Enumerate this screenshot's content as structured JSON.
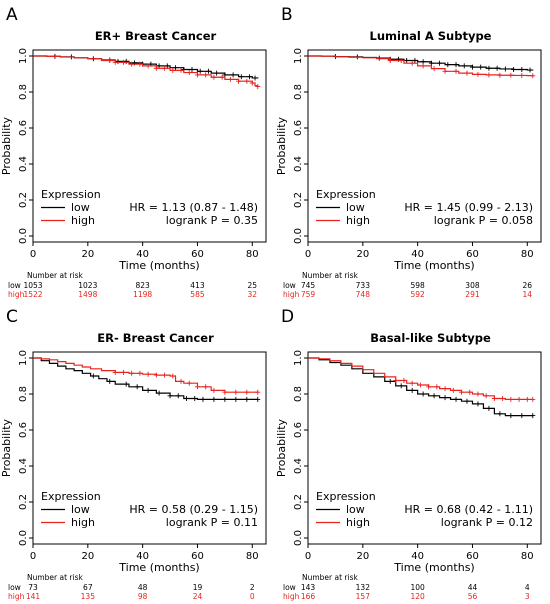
{
  "chart_data": [
    {
      "panel_letter": "A",
      "type": "line",
      "title": "ER+ Breast Cancer",
      "xlabel": "Time (months)",
      "ylabel": "Probability",
      "xlim": [
        0,
        85
      ],
      "ylim": [
        0,
        1
      ],
      "x_ticks": [
        "0",
        "20",
        "40",
        "60",
        "80"
      ],
      "y_ticks": [
        "0.0",
        "0.2",
        "0.4",
        "0.6",
        "0.8",
        "1.0"
      ],
      "grid": false,
      "legend": {
        "title": "Expression",
        "placement": "bottom-left",
        "entries": [
          "low",
          "high"
        ]
      },
      "hr": "HR = 1.13 (0.87 - 1.48)",
      "logrank": "logrank P = 0.35",
      "risk_table": {
        "heading": "Number at risk",
        "times": [
          0,
          20,
          40,
          60,
          80
        ],
        "rows": [
          {
            "label": "low",
            "values": [
              "1053",
              "1023",
              "823",
              "413",
              "25"
            ]
          },
          {
            "label": "high",
            "values": [
              "1522",
              "1498",
              "1198",
              "585",
              "32"
            ]
          }
        ]
      },
      "series": [
        {
          "name": "low",
          "color": "#000000",
          "x": [
            0,
            5,
            10,
            15,
            20,
            25,
            30,
            35,
            40,
            45,
            50,
            55,
            60,
            65,
            70,
            75,
            80,
            82
          ],
          "y": [
            1.0,
            0.998,
            0.995,
            0.99,
            0.985,
            0.978,
            0.97,
            0.962,
            0.955,
            0.945,
            0.935,
            0.925,
            0.915,
            0.905,
            0.895,
            0.885,
            0.878,
            0.875
          ],
          "censor_x": [
            8,
            14,
            22,
            28,
            31,
            34,
            37,
            40,
            43,
            46,
            49,
            52,
            55,
            58,
            61,
            64,
            67,
            70,
            73,
            76,
            79,
            81
          ]
        },
        {
          "name": "high",
          "color": "#e8231c",
          "x": [
            0,
            5,
            10,
            15,
            20,
            25,
            30,
            35,
            40,
            45,
            50,
            55,
            60,
            65,
            70,
            75,
            80,
            81,
            82
          ],
          "y": [
            1.0,
            0.998,
            0.994,
            0.99,
            0.985,
            0.975,
            0.965,
            0.955,
            0.945,
            0.932,
            0.92,
            0.908,
            0.895,
            0.882,
            0.87,
            0.86,
            0.85,
            0.835,
            0.83
          ],
          "censor_x": [
            28,
            30,
            33,
            36,
            39,
            42,
            45,
            48,
            51,
            54,
            57,
            60,
            63,
            66,
            69,
            72,
            75,
            78,
            80,
            82
          ]
        }
      ]
    },
    {
      "panel_letter": "B",
      "type": "line",
      "title": "Luminal A Subtype",
      "xlabel": "Time (months)",
      "ylabel": "Probability",
      "xlim": [
        0,
        85
      ],
      "ylim": [
        0,
        1
      ],
      "x_ticks": [
        "0",
        "20",
        "40",
        "60",
        "80"
      ],
      "y_ticks": [
        "0.0",
        "0.2",
        "0.4",
        "0.6",
        "0.8",
        "1.0"
      ],
      "grid": false,
      "legend": {
        "title": "Expression",
        "placement": "bottom-left",
        "entries": [
          "low",
          "high"
        ]
      },
      "hr": "HR = 1.45 (0.99 - 2.13)",
      "logrank": "logrank P = 0.058",
      "risk_table": {
        "heading": "Number at risk",
        "times": [
          0,
          20,
          40,
          60,
          80
        ],
        "rows": [
          {
            "label": "low",
            "values": [
              "745",
              "733",
              "598",
              "308",
              "26"
            ]
          },
          {
            "label": "high",
            "values": [
              "759",
              "748",
              "592",
              "291",
              "14"
            ]
          }
        ]
      },
      "series": [
        {
          "name": "low",
          "color": "#000000",
          "x": [
            0,
            5,
            10,
            15,
            20,
            25,
            30,
            35,
            40,
            45,
            50,
            55,
            60,
            65,
            70,
            75,
            80,
            82
          ],
          "y": [
            1.0,
            0.999,
            0.997,
            0.995,
            0.992,
            0.988,
            0.982,
            0.975,
            0.968,
            0.96,
            0.952,
            0.945,
            0.938,
            0.932,
            0.928,
            0.925,
            0.922,
            0.92
          ],
          "censor_x": [
            10,
            18,
            26,
            30,
            33,
            36,
            39,
            42,
            45,
            48,
            51,
            54,
            57,
            60,
            63,
            66,
            69,
            72,
            75,
            78,
            81
          ]
        },
        {
          "name": "high",
          "color": "#e8231c",
          "x": [
            0,
            5,
            10,
            15,
            20,
            25,
            30,
            35,
            40,
            45,
            50,
            55,
            60,
            65,
            70,
            75,
            80,
            82
          ],
          "y": [
            1.0,
            0.999,
            0.996,
            0.993,
            0.99,
            0.985,
            0.975,
            0.96,
            0.945,
            0.93,
            0.915,
            0.905,
            0.898,
            0.895,
            0.893,
            0.892,
            0.891,
            0.89
          ],
          "censor_x": [
            30,
            34,
            38,
            42,
            46,
            50,
            54,
            58,
            62,
            66,
            70,
            74,
            78,
            82
          ]
        }
      ]
    },
    {
      "panel_letter": "C",
      "type": "line",
      "title": "ER- Breast Cancer",
      "xlabel": "Time (months)",
      "ylabel": "Probability",
      "xlim": [
        0,
        85
      ],
      "ylim": [
        0,
        1
      ],
      "x_ticks": [
        "0",
        "20",
        "40",
        "60",
        "80"
      ],
      "y_ticks": [
        "0.0",
        "0.2",
        "0.4",
        "0.6",
        "0.8",
        "1.0"
      ],
      "grid": false,
      "legend": {
        "title": "Expression",
        "placement": "bottom-left",
        "entries": [
          "low",
          "high"
        ]
      },
      "hr": "HR = 0.58 (0.29 - 1.15)",
      "logrank": "logrank P = 0.11",
      "risk_table": {
        "heading": "Number at risk",
        "times": [
          0,
          20,
          40,
          60,
          80
        ],
        "rows": [
          {
            "label": "low",
            "values": [
              "73",
              "67",
              "48",
              "19",
              "2"
            ]
          },
          {
            "label": "high",
            "values": [
              "141",
              "135",
              "98",
              "24",
              "0"
            ]
          }
        ]
      },
      "series": [
        {
          "name": "low",
          "color": "#000000",
          "x": [
            0,
            3,
            6,
            9,
            12,
            15,
            18,
            21,
            24,
            27,
            30,
            35,
            40,
            45,
            50,
            55,
            60,
            65,
            70,
            75,
            80,
            82
          ],
          "y": [
            1.0,
            0.985,
            0.97,
            0.955,
            0.94,
            0.93,
            0.915,
            0.9,
            0.885,
            0.87,
            0.855,
            0.84,
            0.82,
            0.805,
            0.79,
            0.775,
            0.77,
            0.77,
            0.77,
            0.77,
            0.77,
            0.77
          ],
          "censor_x": [
            22,
            28,
            34,
            38,
            42,
            46,
            50,
            53,
            56,
            59,
            62,
            66,
            70,
            74,
            78,
            82
          ]
        },
        {
          "name": "high",
          "color": "#e8231c",
          "x": [
            0,
            3,
            6,
            9,
            12,
            15,
            18,
            21,
            25,
            30,
            35,
            40,
            45,
            50,
            52,
            55,
            60,
            65,
            70,
            75,
            80,
            82
          ],
          "y": [
            1.0,
            0.995,
            0.99,
            0.98,
            0.97,
            0.96,
            0.95,
            0.94,
            0.93,
            0.92,
            0.915,
            0.91,
            0.905,
            0.9,
            0.87,
            0.86,
            0.84,
            0.82,
            0.81,
            0.81,
            0.81,
            0.81
          ],
          "censor_x": [
            30,
            33,
            36,
            39,
            42,
            45,
            48,
            51,
            54,
            57,
            60,
            63,
            66,
            70,
            74,
            78,
            82
          ]
        }
      ]
    },
    {
      "panel_letter": "D",
      "type": "line",
      "title": "Basal-like Subtype",
      "xlabel": "Time (months)",
      "ylabel": "Probability",
      "xlim": [
        0,
        85
      ],
      "ylim": [
        0,
        1
      ],
      "x_ticks": [
        "0",
        "20",
        "40",
        "60",
        "80"
      ],
      "y_ticks": [
        "0.0",
        "0.2",
        "0.4",
        "0.6",
        "0.8",
        "1.0"
      ],
      "grid": false,
      "legend": {
        "title": "Expression",
        "placement": "bottom-left",
        "entries": [
          "low",
          "high"
        ]
      },
      "hr": "HR = 0.68 (0.42 - 1.11)",
      "logrank": "logrank P = 0.12",
      "risk_table": {
        "heading": "Number at risk",
        "times": [
          0,
          20,
          40,
          60,
          80
        ],
        "rows": [
          {
            "label": "low",
            "values": [
              "143",
              "132",
              "100",
              "44",
              "4"
            ]
          },
          {
            "label": "high",
            "values": [
              "166",
              "157",
              "120",
              "56",
              "3"
            ]
          }
        ]
      },
      "series": [
        {
          "name": "low",
          "color": "#000000",
          "x": [
            0,
            4,
            8,
            12,
            16,
            20,
            24,
            28,
            32,
            36,
            40,
            44,
            48,
            52,
            56,
            60,
            64,
            68,
            72,
            76,
            80,
            82
          ],
          "y": [
            1.0,
            0.99,
            0.975,
            0.96,
            0.94,
            0.915,
            0.895,
            0.87,
            0.845,
            0.82,
            0.8,
            0.79,
            0.78,
            0.77,
            0.76,
            0.745,
            0.72,
            0.69,
            0.68,
            0.68,
            0.68,
            0.68
          ],
          "censor_x": [
            30,
            34,
            38,
            42,
            46,
            50,
            54,
            58,
            62,
            66,
            70,
            74,
            78,
            82
          ]
        },
        {
          "name": "high",
          "color": "#e8231c",
          "x": [
            0,
            4,
            8,
            12,
            16,
            20,
            24,
            28,
            32,
            36,
            40,
            44,
            48,
            52,
            56,
            60,
            64,
            68,
            72,
            76,
            80,
            82
          ],
          "y": [
            1.0,
            0.995,
            0.985,
            0.97,
            0.955,
            0.935,
            0.915,
            0.895,
            0.875,
            0.86,
            0.85,
            0.84,
            0.83,
            0.82,
            0.81,
            0.8,
            0.79,
            0.775,
            0.77,
            0.77,
            0.77,
            0.77
          ],
          "censor_x": [
            32,
            35,
            38,
            41,
            44,
            47,
            50,
            53,
            56,
            59,
            62,
            65,
            68,
            71,
            74,
            77,
            80,
            82
          ]
        }
      ]
    }
  ]
}
